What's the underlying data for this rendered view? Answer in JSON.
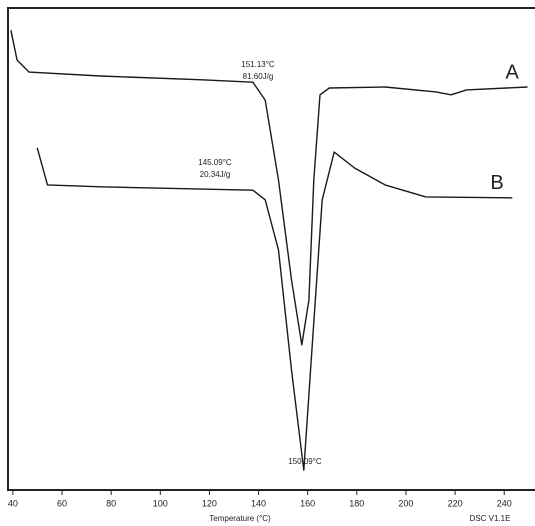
{
  "chart_data": {
    "type": "line",
    "xlabel": "Temperature (°C)",
    "footer": "DSC V1.1E",
    "xlim": [
      38,
      254
    ],
    "ylim": [
      0,
      100
    ],
    "xticks": [
      40,
      60,
      80,
      100,
      120,
      140,
      160,
      180,
      200,
      220,
      240
    ],
    "annotations": [
      "151.13°C",
      "81.60J/g",
      "145.09°C",
      "20.34J/g",
      "150.09°C"
    ],
    "series": [
      {
        "name": "A",
        "color": "#1a1a1a",
        "x": [
          39.2,
          41.7,
          46.6,
          75.6,
          117,
          137.7,
          142.7,
          148.1,
          153.4,
          157.6,
          160.5,
          162.5,
          165,
          168.8,
          191.5,
          212.2,
          218.4,
          224.6,
          249.5
        ],
        "values": [
          95.4,
          89.2,
          86.7,
          85.9,
          85.1,
          84.6,
          80.9,
          64.3,
          43.6,
          30.1,
          39.4,
          64.3,
          82.0,
          83.4,
          83.6,
          82.6,
          82.0,
          83.0,
          83.6
        ]
      },
      {
        "name": "B",
        "color": "#1a1a1a",
        "x": [
          49.9,
          54.1,
          75.6,
          137.7,
          142.7,
          148.1,
          153.4,
          158.4,
          161.7,
          165.9,
          170.8,
          179.1,
          191.5,
          208.1,
          243.3
        ],
        "values": [
          71.0,
          63.3,
          62.9,
          62.2,
          60.2,
          49.8,
          24.9,
          4.1,
          29.0,
          60.2,
          70.1,
          66.8,
          63.3,
          60.8,
          60.6
        ]
      }
    ]
  }
}
